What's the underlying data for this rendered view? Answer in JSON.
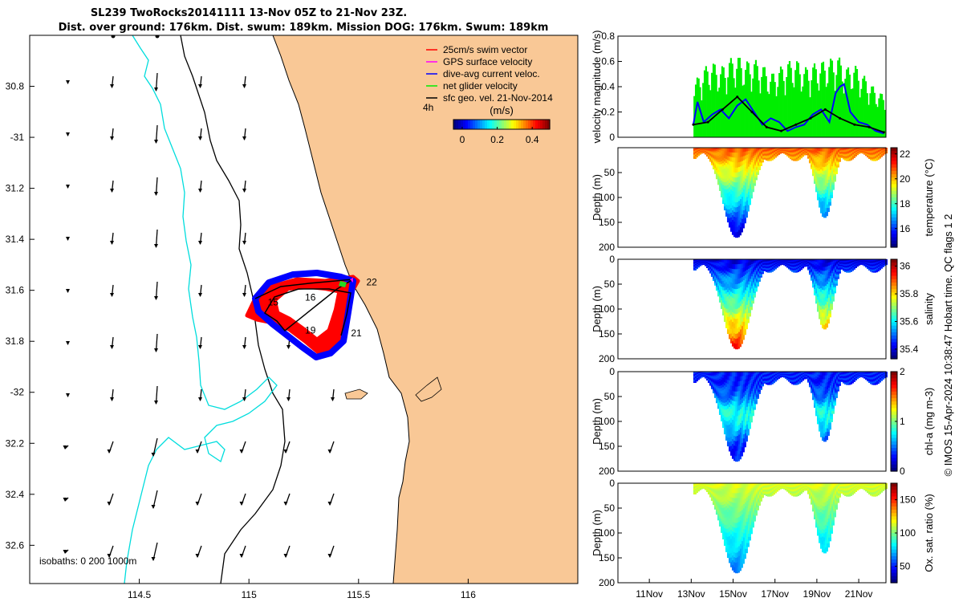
{
  "chart_data": [
    {
      "type": "map",
      "title": [
        "SL239 TwoRocks20141111 13-Nov 05Z to 21-Nov 23Z.",
        "Dist. over ground: 176km. Dist. swum: 189km. Mission DOG: 176km. Swum: 189km"
      ],
      "xlim": [
        114.0,
        116.5
      ],
      "ylim": [
        -32.75,
        -30.6
      ],
      "x_ticks": [
        114.5,
        115,
        115.5,
        116
      ],
      "x_tick_labels": [
        "114.5",
        "115",
        "115.5",
        "116"
      ],
      "y_ticks": [
        -30.8,
        -31,
        -31.2,
        -31.4,
        -31.6,
        -31.8,
        -32,
        -32.2,
        -32.4,
        -32.6
      ],
      "y_tick_labels": [
        "30.8",
        "-31",
        "31.2",
        "31.4",
        "31.6",
        "31.8",
        "-32",
        "32.2",
        "32.4",
        "32.6"
      ],
      "legend": [
        {
          "label": "25cm/s swim vector",
          "color": "#ff0000"
        },
        {
          "label": "GPS surface velocity",
          "color": "#ff00ff"
        },
        {
          "label": "dive-avg current veloc.",
          "color": "#0000ff"
        },
        {
          "label": "net glider velocity",
          "color": "#00ee00"
        },
        {
          "label": "sfc geo. vel. 21-Nov-2014",
          "color": "#000000"
        }
      ],
      "scale_label": "4h",
      "colorbar": {
        "label": "(m/s)",
        "ticks": [
          0,
          0.2,
          0.4
        ],
        "tick_labels": [
          "0",
          "0.2",
          "0.4"
        ],
        "range": [
          -0.05,
          0.5
        ]
      },
      "isobath_label": "isobaths: 0   200  1000m",
      "day_labels": [
        {
          "text": "15",
          "lon": 115.11,
          "lat": -31.66
        },
        {
          "text": "16",
          "lon": 115.28,
          "lat": -31.64
        },
        {
          "text": "19",
          "lon": 115.28,
          "lat": -31.77
        },
        {
          "text": "21",
          "lon": 115.49,
          "lat": -31.78
        },
        {
          "text": "22",
          "lon": 115.56,
          "lat": -31.58
        }
      ]
    },
    {
      "type": "line",
      "ylabel": "velocity magnitude (m/s)",
      "ylim": [
        0,
        0.8
      ],
      "y_ticks": [
        0,
        0.2,
        0.4,
        0.6,
        0.8
      ],
      "y_tick_labels": [
        "0",
        "0.2",
        "0.4",
        "0.6",
        "0.8"
      ],
      "xlim": [
        9.5,
        22.3
      ],
      "series": [
        {
          "name": "net glider velocity",
          "color": "#00ee00",
          "x": [
            13.2,
            13.6,
            14.0,
            14.4,
            14.8,
            15.2,
            15.6,
            16.0,
            16.4,
            16.8,
            17.2,
            17.6,
            18.0,
            18.4,
            18.8,
            19.2,
            19.6,
            20.0,
            20.4,
            20.8,
            21.2,
            21.6,
            22.0
          ],
          "y": [
            0.45,
            0.55,
            0.6,
            0.55,
            0.62,
            0.65,
            0.6,
            0.62,
            0.58,
            0.5,
            0.55,
            0.6,
            0.62,
            0.55,
            0.58,
            0.6,
            0.62,
            0.65,
            0.55,
            0.58,
            0.5,
            0.42,
            0.35
          ]
        },
        {
          "name": "dive-avg current veloc.",
          "color": "#0000ff",
          "x": [
            13.1,
            13.3,
            13.6,
            14.0,
            14.4,
            14.8,
            15.2,
            15.6,
            16.0,
            16.4,
            16.8,
            17.2,
            17.6,
            18.0,
            18.4,
            18.8,
            19.2,
            19.6,
            19.9,
            20.1,
            20.3,
            20.6,
            21.0,
            21.4,
            21.8,
            22.2
          ],
          "y": [
            0.1,
            0.28,
            0.12,
            0.18,
            0.22,
            0.15,
            0.25,
            0.3,
            0.2,
            0.1,
            0.15,
            0.12,
            0.05,
            0.08,
            0.1,
            0.18,
            0.22,
            0.12,
            0.35,
            0.4,
            0.42,
            0.2,
            0.12,
            0.1,
            0.05,
            0.03
          ]
        },
        {
          "name": "sfc geo. vel. 21-Nov-2014",
          "color": "#000000",
          "x": [
            13.1,
            13.8,
            14.5,
            15.2,
            15.9,
            16.6,
            17.3,
            18.0,
            18.7,
            19.4,
            20.1,
            20.8,
            21.5,
            22.2
          ],
          "y": [
            0.1,
            0.12,
            0.22,
            0.32,
            0.2,
            0.08,
            0.05,
            0.1,
            0.15,
            0.22,
            0.15,
            0.1,
            0.08,
            0.04
          ]
        }
      ]
    },
    {
      "type": "heatmap",
      "ylabel": "Depth (m)",
      "cbar_label": "temperature (°C)",
      "ylim": [
        200,
        0
      ],
      "y_ticks": [
        50,
        100,
        150,
        200
      ],
      "y_tick_labels": [
        "50",
        "100",
        "150",
        "200"
      ],
      "clim": [
        14.5,
        22.5
      ],
      "cbar_ticks": [
        16,
        18,
        20,
        22
      ],
      "cbar_tick_labels": [
        "16",
        "18",
        "20",
        "22"
      ],
      "dip1": {
        "center_day": 15.1,
        "max_depth": 185
      },
      "dip2": {
        "center_day": 19.3,
        "max_depth": 145
      }
    },
    {
      "type": "heatmap",
      "ylabel": "Depth (m)",
      "cbar_label": "salinity",
      "ylim": [
        200,
        0
      ],
      "y_ticks": [
        0,
        50,
        100,
        150,
        200
      ],
      "y_tick_labels": [
        "0",
        "50",
        "100",
        "150",
        "200"
      ],
      "clim": [
        35.33,
        36.05
      ],
      "cbar_ticks": [
        35.4,
        35.6,
        35.8,
        36
      ],
      "cbar_tick_labels": [
        "35.4",
        "35.6",
        "35.8",
        "36"
      ]
    },
    {
      "type": "heatmap",
      "ylabel": "Depth (m)",
      "cbar_label": "chl-a (mg m-3)",
      "ylim": [
        200,
        0
      ],
      "y_ticks": [
        0,
        50,
        100,
        150,
        200
      ],
      "y_tick_labels": [
        "0",
        "50",
        "100",
        "150",
        "200"
      ],
      "clim": [
        0,
        2
      ],
      "cbar_ticks": [
        0,
        1,
        2
      ],
      "cbar_tick_labels": [
        "0",
        "1",
        "2"
      ]
    },
    {
      "type": "heatmap",
      "ylabel": "Depth (m)",
      "cbar_label": "Ox. sat. ratio (%)",
      "ylim": [
        200,
        0
      ],
      "y_ticks": [
        0,
        50,
        100,
        150,
        200
      ],
      "y_tick_labels": [
        "0",
        "50",
        "100",
        "150",
        "200"
      ],
      "clim": [
        25,
        175
      ],
      "cbar_ticks": [
        50,
        100,
        150
      ],
      "cbar_tick_labels": [
        "50",
        "100",
        "150"
      ],
      "x_ticks": [
        11,
        13,
        15,
        17,
        19,
        21
      ],
      "x_tick_labels": [
        "11Nov",
        "13Nov",
        "15Nov",
        "17Nov",
        "19Nov",
        "21Nov"
      ]
    }
  ],
  "credit": "© IMOS 15-Apr-2024 10:38:47 Hobart time. QC flags 1  2",
  "colors": {
    "land": "#f9c896",
    "sea": "#ffffff",
    "isobath200": "#000000",
    "isobath1000": "#00dddd"
  }
}
